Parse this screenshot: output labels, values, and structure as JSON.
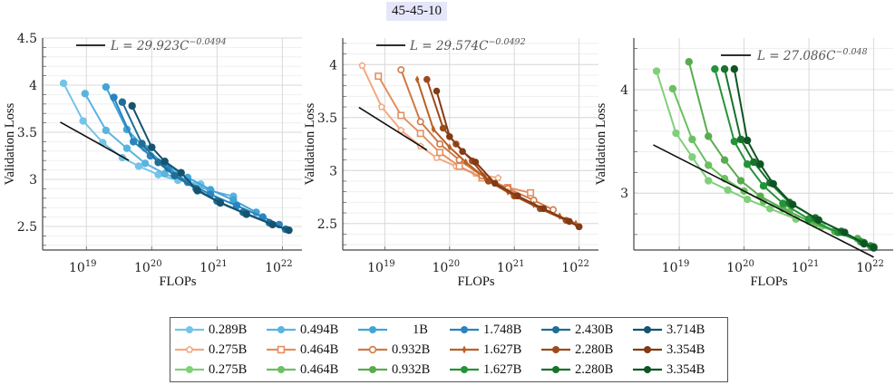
{
  "title": "45-45-10",
  "chart_data": [
    {
      "type": "line",
      "xscale": "log",
      "xlabel": "FLOPs",
      "ylabel": "Validation Loss",
      "xlim_log10": [
        18.33,
        22.3
      ],
      "ylim": [
        2.25,
        4.5
      ],
      "yticks": [
        2.5,
        3,
        3.5,
        4,
        4.5
      ],
      "ytick_labels": [
        "2.5",
        "3",
        "3.5",
        "4",
        "4.5"
      ],
      "xticks_log10": [
        19,
        20,
        21,
        22
      ],
      "xtick_labels": [
        {
          "base": "10",
          "exp": "19"
        },
        {
          "base": "10",
          "exp": "20"
        },
        {
          "base": "10",
          "exp": "21"
        },
        {
          "base": "10",
          "exp": "22"
        }
      ],
      "grid": true,
      "fit": {
        "label_prefix": "L = 29.923C",
        "label_exp": "−0.0494",
        "a": 29.923,
        "b": -0.0494,
        "x_range_log10": [
          18.6,
          19.65
        ]
      },
      "fit_legend_position": "top-left",
      "series": [
        {
          "name": "0.289B",
          "color": "#74c4e8",
          "marker": "circle",
          "x_log10": [
            18.65,
            18.95,
            19.25,
            19.55,
            19.8,
            20.1,
            20.4,
            20.75
          ],
          "y": [
            4.02,
            3.62,
            3.39,
            3.23,
            3.14,
            3.05,
            2.99,
            2.95
          ]
        },
        {
          "name": "0.494B",
          "color": "#5ab4e0",
          "marker": "circle",
          "x_log10": [
            18.98,
            19.3,
            19.62,
            19.9,
            20.2,
            20.55,
            20.9,
            21.25
          ],
          "y": [
            3.91,
            3.52,
            3.33,
            3.17,
            3.06,
            2.97,
            2.88,
            2.82
          ]
        },
        {
          "name": "1B",
          "color": "#3fa5d6",
          "marker": "circle",
          "x_log10": [
            19.3,
            19.62,
            19.9,
            20.2,
            20.55,
            20.9,
            21.25,
            21.6
          ],
          "y": [
            3.98,
            3.53,
            3.33,
            3.16,
            3.02,
            2.89,
            2.78,
            2.65
          ]
        },
        {
          "name": "1.748B",
          "color": "#2b83bf",
          "marker": "circle",
          "x_log10": [
            19.42,
            19.72,
            19.98,
            20.25,
            20.55,
            20.9,
            21.3,
            21.7,
            21.95
          ],
          "y": [
            3.87,
            3.4,
            3.25,
            3.12,
            2.97,
            2.84,
            2.72,
            2.6,
            2.52
          ]
        },
        {
          "name": "2.430B",
          "color": "#1f6e96",
          "marker": "circle",
          "x_log10": [
            19.55,
            19.85,
            20.1,
            20.35,
            20.68,
            21.0,
            21.4,
            21.8,
            22.05
          ],
          "y": [
            3.82,
            3.38,
            3.18,
            3.04,
            2.9,
            2.77,
            2.65,
            2.54,
            2.47
          ]
        },
        {
          "name": "3.714B",
          "color": "#15536f",
          "marker": "circle",
          "x_log10": [
            19.7,
            20.0,
            20.2,
            20.45,
            20.7,
            21.05,
            21.45,
            21.85,
            22.1
          ],
          "y": [
            3.78,
            3.34,
            3.19,
            3.07,
            2.88,
            2.75,
            2.63,
            2.52,
            2.46
          ]
        }
      ]
    },
    {
      "type": "line",
      "xscale": "log",
      "xlabel": "FLOPs",
      "ylabel": "Validation Loss",
      "xlim_log10": [
        18.35,
        22.3
      ],
      "ylim": [
        2.25,
        4.25
      ],
      "yticks": [
        2.5,
        3,
        3.5,
        4
      ],
      "ytick_labels": [
        "2.5",
        "3",
        "3.5",
        "4"
      ],
      "xticks_log10": [
        19,
        20,
        21,
        22
      ],
      "xtick_labels": [
        {
          "base": "10",
          "exp": "19"
        },
        {
          "base": "10",
          "exp": "20"
        },
        {
          "base": "10",
          "exp": "21"
        },
        {
          "base": "10",
          "exp": "22"
        }
      ],
      "grid": true,
      "fit": {
        "label_prefix": "L = 29.574C",
        "label_exp": "−0.0492",
        "a": 29.574,
        "b": -0.0492,
        "x_range_log10": [
          18.6,
          19.65
        ]
      },
      "fit_legend_position": "top-left",
      "series": [
        {
          "name": "0.275B",
          "color": "#f2a982",
          "marker": "pentagon-open",
          "x_log10": [
            18.65,
            18.95,
            19.25,
            19.55,
            19.8,
            20.1,
            20.4,
            20.75
          ],
          "y": [
            3.99,
            3.6,
            3.38,
            3.23,
            3.12,
            3.04,
            2.97,
            2.93
          ]
        },
        {
          "name": "0.464B",
          "color": "#e39062",
          "marker": "square-open",
          "x_log10": [
            18.9,
            19.25,
            19.55,
            19.85,
            20.15,
            20.5,
            20.9,
            21.25
          ],
          "y": [
            3.89,
            3.52,
            3.35,
            3.17,
            3.04,
            2.93,
            2.84,
            2.79
          ]
        },
        {
          "name": "0.932B",
          "color": "#d07a45",
          "marker": "circle-open",
          "x_log10": [
            19.25,
            19.55,
            19.85,
            20.15,
            20.5,
            20.9,
            21.3,
            21.6
          ],
          "y": [
            3.95,
            3.46,
            3.25,
            3.1,
            2.95,
            2.83,
            2.72,
            2.63
          ]
        },
        {
          "name": "1.627B",
          "color": "#bb6125",
          "marker": "diamond",
          "x_log10": [
            19.5,
            19.75,
            20.0,
            20.25,
            20.55,
            20.9,
            21.3,
            21.7,
            21.95
          ],
          "y": [
            3.86,
            3.39,
            3.22,
            3.08,
            2.93,
            2.8,
            2.68,
            2.57,
            2.5
          ]
        },
        {
          "name": "2.280B",
          "color": "#9d4a1c",
          "marker": "circle",
          "x_log10": [
            19.65,
            19.9,
            20.1,
            20.35,
            20.6,
            21.0,
            21.4,
            21.8,
            22.0
          ],
          "y": [
            3.86,
            3.4,
            3.25,
            3.09,
            2.9,
            2.76,
            2.64,
            2.53,
            2.47
          ]
        },
        {
          "name": "3.354B",
          "color": "#823b14",
          "marker": "circle",
          "x_log10": [
            19.8,
            20.0,
            20.2,
            20.4,
            20.7,
            21.05,
            21.45,
            21.85,
            22.0
          ],
          "y": [
            3.75,
            3.32,
            3.18,
            3.08,
            2.88,
            2.76,
            2.64,
            2.52,
            2.47
          ]
        }
      ]
    },
    {
      "type": "line",
      "xscale": "log",
      "xlabel": "FLOPs",
      "ylabel": "Validation Loss",
      "xlim_log10": [
        18.3,
        22.3
      ],
      "ylim": [
        2.45,
        4.5
      ],
      "yticks": [
        3,
        4
      ],
      "ytick_labels": [
        "3",
        "4"
      ],
      "xticks_log10": [
        19,
        20,
        21,
        22
      ],
      "xtick_labels": [
        {
          "base": "10",
          "exp": "19"
        },
        {
          "base": "10",
          "exp": "20"
        },
        {
          "base": "10",
          "exp": "21"
        },
        {
          "base": "10",
          "exp": "22"
        }
      ],
      "grid": true,
      "fit": {
        "label_prefix": "L = 27.086C",
        "label_exp": "−0.048",
        "a": 27.086,
        "b": -0.048,
        "x_range_log10": [
          18.6,
          22.0
        ]
      },
      "fit_legend_position": "top-center",
      "series": [
        {
          "name": "0.275B",
          "color": "#7fd07a",
          "marker": "circle",
          "x_log10": [
            18.65,
            18.95,
            19.2,
            19.45,
            19.75,
            20.05,
            20.4,
            20.8,
            21.2
          ],
          "y": [
            4.18,
            3.58,
            3.35,
            3.12,
            3.03,
            2.94,
            2.85,
            2.75,
            2.68
          ]
        },
        {
          "name": "0.464B",
          "color": "#6cbf62",
          "marker": "circle",
          "x_log10": [
            18.9,
            19.2,
            19.45,
            19.7,
            20.0,
            20.3,
            20.7,
            21.1,
            21.5
          ],
          "y": [
            4.01,
            3.52,
            3.27,
            3.14,
            3.02,
            2.92,
            2.82,
            2.7,
            2.62
          ]
        },
        {
          "name": "0.932B",
          "color": "#5aab4f",
          "marker": "circle",
          "x_log10": [
            19.15,
            19.45,
            19.7,
            19.95,
            20.25,
            20.6,
            21.0,
            21.4,
            21.75
          ],
          "y": [
            4.27,
            3.55,
            3.32,
            3.12,
            2.97,
            2.85,
            2.73,
            2.63,
            2.56
          ]
        },
        {
          "name": "1.627B",
          "color": "#249338",
          "marker": "circle",
          "x_log10": [
            19.55,
            19.85,
            20.05,
            20.3,
            20.6,
            21.0,
            21.45,
            21.8,
            21.95
          ],
          "y": [
            4.2,
            3.5,
            3.28,
            3.07,
            2.9,
            2.75,
            2.62,
            2.53,
            2.49
          ]
        },
        {
          "name": "2.280B",
          "color": "#18722c",
          "marker": "circle",
          "x_log10": [
            19.7,
            19.95,
            20.15,
            20.4,
            20.7,
            21.1,
            21.5,
            21.85,
            22.0
          ],
          "y": [
            4.2,
            3.52,
            3.3,
            3.1,
            2.91,
            2.76,
            2.63,
            2.52,
            2.48
          ]
        },
        {
          "name": "3.354B",
          "color": "#0f5523",
          "marker": "circle",
          "x_log10": [
            19.85,
            20.05,
            20.25,
            20.45,
            20.75,
            21.15,
            21.55,
            21.85,
            22.0
          ],
          "y": [
            4.2,
            3.51,
            3.28,
            3.09,
            2.89,
            2.74,
            2.62,
            2.51,
            2.47
          ]
        }
      ]
    }
  ],
  "legend": {
    "rows": [
      [
        {
          "label": "0.289B",
          "color": "#74c4e8",
          "marker": "circle"
        },
        {
          "label": "0.494B",
          "color": "#5ab4e0",
          "marker": "circle"
        },
        {
          "label": "1B",
          "color": "#3fa5d6",
          "marker": "circle"
        },
        {
          "label": "1.748B",
          "color": "#2b83bf",
          "marker": "circle"
        },
        {
          "label": "2.430B",
          "color": "#1f6e96",
          "marker": "circle"
        },
        {
          "label": "3.714B",
          "color": "#15536f",
          "marker": "circle"
        }
      ],
      [
        {
          "label": "0.275B",
          "color": "#f2a982",
          "marker": "pentagon-open"
        },
        {
          "label": "0.464B",
          "color": "#e39062",
          "marker": "square-open"
        },
        {
          "label": "0.932B",
          "color": "#d07a45",
          "marker": "circle-open"
        },
        {
          "label": "1.627B",
          "color": "#bb6125",
          "marker": "diamond"
        },
        {
          "label": "2.280B",
          "color": "#9d4a1c",
          "marker": "circle"
        },
        {
          "label": "3.354B",
          "color": "#823b14",
          "marker": "circle"
        }
      ],
      [
        {
          "label": "0.275B",
          "color": "#7fd07a",
          "marker": "circle"
        },
        {
          "label": "0.464B",
          "color": "#6cbf62",
          "marker": "circle"
        },
        {
          "label": "0.932B",
          "color": "#5aab4f",
          "marker": "circle"
        },
        {
          "label": "1.627B",
          "color": "#249338",
          "marker": "circle"
        },
        {
          "label": "2.280B",
          "color": "#18722c",
          "marker": "circle"
        },
        {
          "label": "3.354B",
          "color": "#0f5523",
          "marker": "circle"
        }
      ]
    ]
  }
}
